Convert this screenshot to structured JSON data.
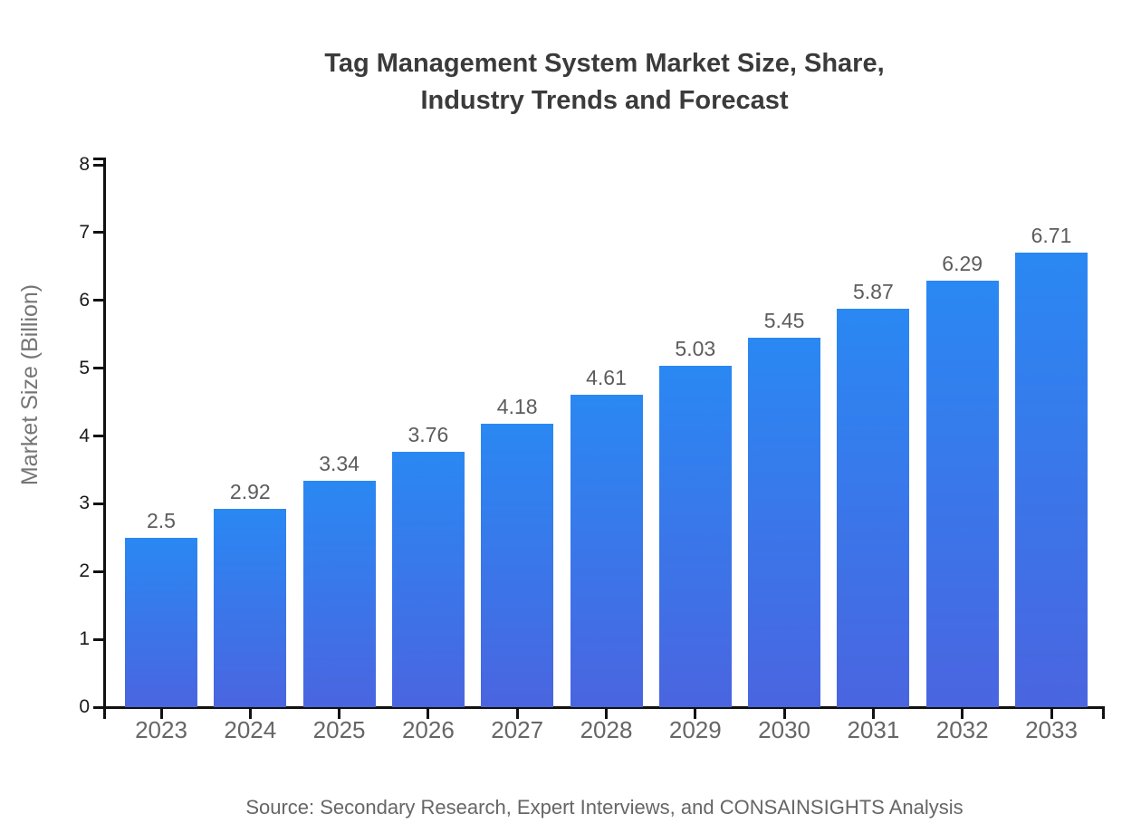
{
  "title": {
    "line1": "Tag Management System Market Size, Share,",
    "line2": "Industry Trends and Forecast"
  },
  "y_axis": {
    "label": "Market Size (Billion)"
  },
  "source_note": "Source: Secondary Research, Expert Interviews, and CONSAINSIGHTS Analysis",
  "colors": {
    "background": "#FFFFFF",
    "bar_gradient_top": "#2A88F3",
    "bar_gradient_bottom": "#4A65E0",
    "axis": "#111111",
    "title_text": "#3B3B3B",
    "y_tick_label": "#1A1A1A",
    "x_tick_label": "#666666",
    "value_label": "#5C5C5C",
    "axis_label": "#757575",
    "source_text": "#666666"
  },
  "chart_data": {
    "type": "bar",
    "title": "Tag Management System Market Size, Share, Industry Trends and Forecast",
    "categories": [
      "2023",
      "2024",
      "2025",
      "2026",
      "2027",
      "2028",
      "2029",
      "2030",
      "2031",
      "2032",
      "2033"
    ],
    "values": [
      2.5,
      2.92,
      3.34,
      3.76,
      4.18,
      4.61,
      5.03,
      5.45,
      5.87,
      6.29,
      6.71
    ],
    "value_labels": [
      "2.5",
      "2.92",
      "3.34",
      "3.76",
      "4.18",
      "4.61",
      "5.03",
      "5.45",
      "5.87",
      "6.29",
      "6.71"
    ],
    "xlabel": "",
    "ylabel": "Market Size (Billion)",
    "ylim": [
      0,
      8
    ],
    "y_ticks": [
      0,
      1,
      2,
      3,
      4,
      5,
      6,
      7,
      8
    ],
    "grid": false,
    "legend": false,
    "bar_style": "vertical gradient, dodger blue top to royal blue bottom, no borders"
  }
}
